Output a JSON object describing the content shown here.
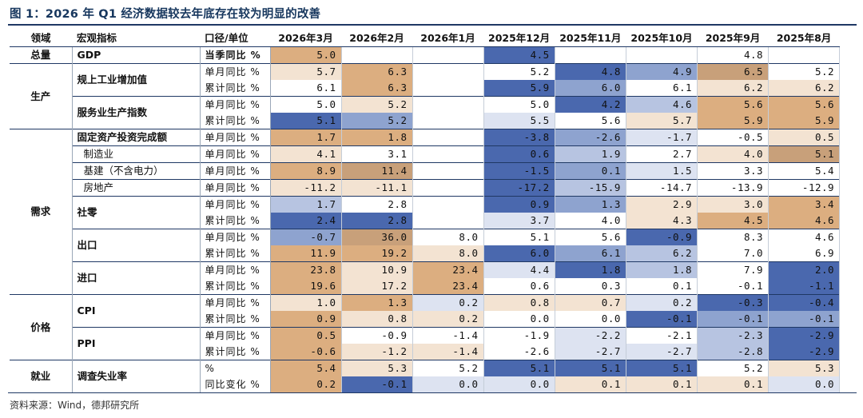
{
  "title": "图 1：2026 年 Q1 经济数据较去年底存在较为明显的改善",
  "source": "资料来源：Wind，德邦研究所",
  "headers": {
    "domain": "领域",
    "indicator": "宏观指标",
    "caliber": "口径/单位",
    "months": [
      "2026年3月",
      "2026年2月",
      "2026年1月",
      "2025年12月",
      "2025年11月",
      "2025年10月",
      "2025年9月",
      "2025年8月"
    ]
  },
  "groups": [
    {
      "domain": "总量",
      "indicators": [
        {
          "name": "GDP",
          "sub": false,
          "rows": [
            {
              "caliber": "当季同比 %",
              "bold": true,
              "values": [
                "5.0",
                "",
                "",
                "4.5",
                "",
                "",
                "4.8",
                ""
              ],
              "colors": [
                "#dcae80",
                "#ffffff",
                "#ffffff",
                "#4a68ae",
                "#ffffff",
                "#ffffff",
                "#ffffff",
                "#ffffff"
              ]
            }
          ]
        }
      ]
    },
    {
      "domain": "生产",
      "indicators": [
        {
          "name": "规上工业增加值",
          "sub": false,
          "rows": [
            {
              "caliber": "单月同比 %",
              "bold": false,
              "values": [
                "5.7",
                "6.3",
                "",
                "5.2",
                "4.8",
                "4.9",
                "6.5",
                "5.2"
              ],
              "colors": [
                "#f3e3d2",
                "#dcae80",
                "#ffffff",
                "#ffffff",
                "#4a68ae",
                "#8ea3cf",
                "#c8a07a",
                "#ffffff"
              ]
            },
            {
              "caliber": "累计同比 %",
              "bold": false,
              "values": [
                "6.1",
                "6.3",
                "",
                "5.9",
                "6.0",
                "6.1",
                "6.2",
                "6.2"
              ],
              "colors": [
                "#ffffff",
                "#dcae80",
                "#ffffff",
                "#4a68ae",
                "#8ea3cf",
                "#ffffff",
                "#f3e3d2",
                "#f3e3d2"
              ]
            }
          ]
        },
        {
          "name": "服务业生产指数",
          "sub": false,
          "rows": [
            {
              "caliber": "单月同比 %",
              "bold": false,
              "values": [
                "5.0",
                "5.2",
                "",
                "5.0",
                "4.2",
                "4.6",
                "5.6",
                "5.6"
              ],
              "colors": [
                "#ffffff",
                "#f3e3d2",
                "#ffffff",
                "#ffffff",
                "#4a68ae",
                "#b7c4e1",
                "#dcae80",
                "#dcae80"
              ]
            },
            {
              "caliber": "累计同比 %",
              "bold": false,
              "values": [
                "5.1",
                "5.2",
                "",
                "5.5",
                "5.6",
                "5.7",
                "5.9",
                "5.9"
              ],
              "colors": [
                "#4a68ae",
                "#8ea3cf",
                "#ffffff",
                "#dde3f1",
                "#ffffff",
                "#f3e3d2",
                "#dcae80",
                "#dcae80"
              ]
            }
          ]
        }
      ]
    },
    {
      "domain": "需求",
      "indicators": [
        {
          "name": "固定资产投资完成额",
          "sub": false,
          "rows": [
            {
              "caliber": "单月同比 %",
              "bold": false,
              "values": [
                "1.7",
                "1.8",
                "",
                "-3.8",
                "-2.6",
                "-1.7",
                "-0.5",
                "0.5"
              ],
              "colors": [
                "#dcae80",
                "#dcae80",
                "#ffffff",
                "#4a68ae",
                "#8ea3cf",
                "#dde3f1",
                "#ffffff",
                "#f3e3d2"
              ]
            }
          ]
        },
        {
          "name": "制造业",
          "sub": true,
          "rows": [
            {
              "caliber": "单月同比 %",
              "bold": false,
              "values": [
                "4.1",
                "3.1",
                "",
                "0.6",
                "1.9",
                "2.7",
                "4.0",
                "5.1"
              ],
              "colors": [
                "#f3e3d2",
                "#ffffff",
                "#ffffff",
                "#4a68ae",
                "#b7c4e1",
                "#ffffff",
                "#f3e3d2",
                "#c8a07a"
              ]
            }
          ]
        },
        {
          "name": "基建（不含电力）",
          "sub": true,
          "rows": [
            {
              "caliber": "单月同比 %",
              "bold": false,
              "values": [
                "8.9",
                "11.4",
                "",
                "-1.5",
                "0.1",
                "1.5",
                "3.3",
                "5.4"
              ],
              "colors": [
                "#dcae80",
                "#c8a07a",
                "#ffffff",
                "#4a68ae",
                "#8ea3cf",
                "#dde3f1",
                "#ffffff",
                "#ffffff"
              ]
            }
          ]
        },
        {
          "name": "房地产",
          "sub": true,
          "rows": [
            {
              "caliber": "单月同比 %",
              "bold": false,
              "values": [
                "-11.2",
                "-11.1",
                "",
                "-17.2",
                "-15.9",
                "-14.7",
                "-13.9",
                "-12.9"
              ],
              "colors": [
                "#f3e3d2",
                "#f3e3d2",
                "#ffffff",
                "#4a68ae",
                "#b7c4e1",
                "#ffffff",
                "#ffffff",
                "#ffffff"
              ]
            }
          ]
        },
        {
          "name": "社零",
          "sub": false,
          "rows": [
            {
              "caliber": "单月同比 %",
              "bold": false,
              "values": [
                "1.7",
                "2.8",
                "",
                "0.9",
                "1.3",
                "2.9",
                "3.0",
                "3.4"
              ],
              "colors": [
                "#b7c4e1",
                "#ffffff",
                "#ffffff",
                "#4a68ae",
                "#8ea3cf",
                "#f3e3d2",
                "#f3e3d2",
                "#dcae80"
              ]
            },
            {
              "caliber": "累计同比 %",
              "bold": false,
              "values": [
                "2.4",
                "2.8",
                "",
                "3.7",
                "4.0",
                "4.3",
                "4.5",
                "4.6"
              ],
              "colors": [
                "#4a68ae",
                "#4a68ae",
                "#ffffff",
                "#dde3f1",
                "#ffffff",
                "#f3e3d2",
                "#dcae80",
                "#dcae80"
              ]
            }
          ]
        },
        {
          "name": "出口",
          "sub": false,
          "rows": [
            {
              "caliber": "单月同比 %",
              "bold": false,
              "values": [
                "-0.7",
                "36.0",
                "8.0",
                "5.1",
                "5.6",
                "-0.9",
                "8.3",
                "4.6"
              ],
              "colors": [
                "#8ea3cf",
                "#c8a07a",
                "#ffffff",
                "#ffffff",
                "#ffffff",
                "#4a68ae",
                "#ffffff",
                "#ffffff"
              ]
            },
            {
              "caliber": "累计同比 %",
              "bold": false,
              "values": [
                "11.9",
                "19.2",
                "8.0",
                "6.0",
                "6.1",
                "6.2",
                "7.0",
                "6.9"
              ],
              "colors": [
                "#dcae80",
                "#dcae80",
                "#f3e3d2",
                "#4a68ae",
                "#8ea3cf",
                "#b7c4e1",
                "#ffffff",
                "#ffffff"
              ]
            }
          ]
        },
        {
          "name": "进口",
          "sub": false,
          "rows": [
            {
              "caliber": "单月同比 %",
              "bold": false,
              "values": [
                "23.8",
                "10.9",
                "23.4",
                "4.4",
                "1.8",
                "1.8",
                "7.9",
                "2.0"
              ],
              "colors": [
                "#dcae80",
                "#f3e3d2",
                "#dcae80",
                "#dde3f1",
                "#4a68ae",
                "#b7c4e1",
                "#ffffff",
                "#4a68ae"
              ]
            },
            {
              "caliber": "累计同比 %",
              "bold": false,
              "values": [
                "19.6",
                "17.2",
                "23.4",
                "0.6",
                "0.3",
                "0.1",
                "-0.1",
                "-1.1"
              ],
              "colors": [
                "#dcae80",
                "#f3e3d2",
                "#dcae80",
                "#ffffff",
                "#ffffff",
                "#ffffff",
                "#ffffff",
                "#4a68ae"
              ]
            }
          ]
        }
      ]
    },
    {
      "domain": "价格",
      "indicators": [
        {
          "name": "CPI",
          "sub": false,
          "rows": [
            {
              "caliber": "单月同比 %",
              "bold": false,
              "values": [
                "1.0",
                "1.3",
                "0.2",
                "0.8",
                "0.7",
                "0.2",
                "-0.3",
                "-0.4"
              ],
              "colors": [
                "#f3e3d2",
                "#dcae80",
                "#dde3f1",
                "#f3e3d2",
                "#f3e3d2",
                "#dde3f1",
                "#4a68ae",
                "#4a68ae"
              ]
            },
            {
              "caliber": "累计同比 %",
              "bold": false,
              "values": [
                "0.9",
                "0.8",
                "0.2",
                "0.0",
                "0.0",
                "-0.1",
                "-0.1",
                "-0.1"
              ],
              "colors": [
                "#dcae80",
                "#f3e3d2",
                "#f3e3d2",
                "#ffffff",
                "#ffffff",
                "#4a68ae",
                "#8ea3cf",
                "#8ea3cf"
              ]
            }
          ]
        },
        {
          "name": "PPI",
          "sub": false,
          "rows": [
            {
              "caliber": "单月同比 %",
              "bold": false,
              "values": [
                "0.5",
                "-0.9",
                "-1.4",
                "-1.9",
                "-2.2",
                "-2.1",
                "-2.3",
                "-2.9"
              ],
              "colors": [
                "#dcae80",
                "#ffffff",
                "#ffffff",
                "#ffffff",
                "#dde3f1",
                "#ffffff",
                "#b7c4e1",
                "#4a68ae"
              ]
            },
            {
              "caliber": "累计同比 %",
              "bold": false,
              "values": [
                "-0.6",
                "-1.2",
                "-1.4",
                "-2.6",
                "-2.7",
                "-2.7",
                "-2.8",
                "-2.9"
              ],
              "colors": [
                "#dcae80",
                "#f3e3d2",
                "#f3e3d2",
                "#ffffff",
                "#dde3f1",
                "#dde3f1",
                "#b7c4e1",
                "#4a68ae"
              ]
            }
          ]
        }
      ]
    },
    {
      "domain": "就业",
      "indicators": [
        {
          "name": "调查失业率",
          "sub": false,
          "rows": [
            {
              "caliber": "%",
              "bold": false,
              "values": [
                "5.4",
                "5.3",
                "5.2",
                "5.1",
                "5.1",
                "5.1",
                "5.2",
                "5.3"
              ],
              "colors": [
                "#dcae80",
                "#f3e3d2",
                "#ffffff",
                "#4a68ae",
                "#4a68ae",
                "#4a68ae",
                "#ffffff",
                "#f3e3d2"
              ]
            },
            {
              "caliber": "同比变化 %",
              "bold": false,
              "values": [
                "0.2",
                "-0.1",
                "0.0",
                "0.0",
                "0.1",
                "0.1",
                "0.1",
                "0.0"
              ],
              "colors": [
                "#dcae80",
                "#4a68ae",
                "#dde3f1",
                "#dde3f1",
                "#f3e3d2",
                "#f3e3d2",
                "#f3e3d2",
                "#dde3f1"
              ]
            }
          ]
        }
      ]
    }
  ]
}
